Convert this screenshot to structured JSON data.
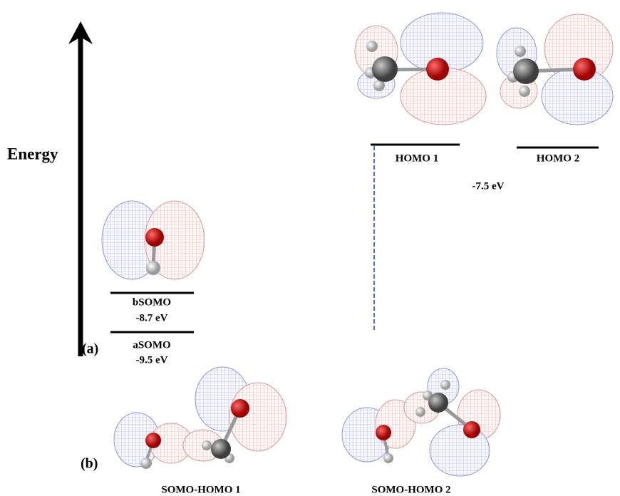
{
  "panel_a": {
    "label": "(a)",
    "axis_label": "Energy",
    "homo_levels": [
      {
        "label": "HOMO 1"
      },
      {
        "label": "HOMO 2"
      }
    ],
    "homo_energy": "-7.5 eV",
    "somo_levels": [
      {
        "label": "bSOMO",
        "energy": "-8.7 eV"
      },
      {
        "label": "aSOMO",
        "energy": "-9.5 eV"
      }
    ]
  },
  "panel_b": {
    "label": "(b)",
    "orbitals": [
      {
        "label": "SOMO-HOMO 1"
      },
      {
        "label": "SOMO-HOMO 2"
      }
    ]
  }
}
